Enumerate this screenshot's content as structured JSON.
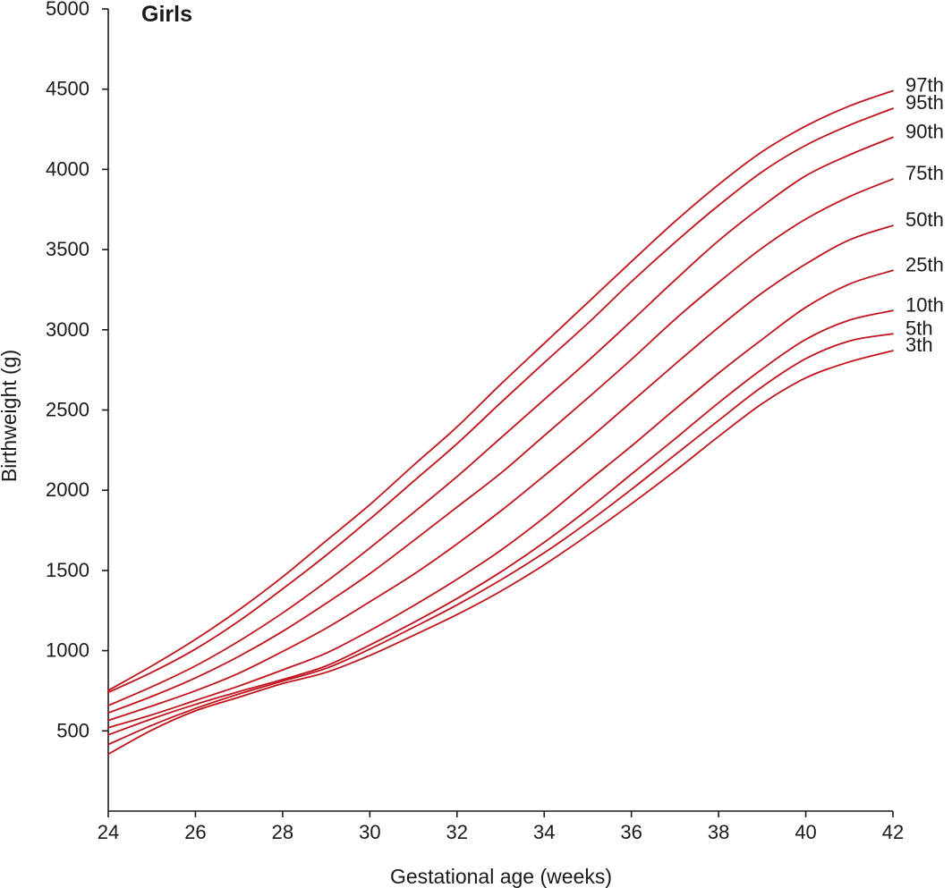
{
  "chart_data": {
    "type": "line",
    "title": "Girls",
    "xlabel": "Gestational age (weeks)",
    "ylabel": "Birthweight (g)",
    "xlim": [
      24,
      42
    ],
    "ylim": [
      0,
      5000
    ],
    "xticks": [
      24,
      26,
      28,
      30,
      32,
      34,
      36,
      38,
      40,
      42
    ],
    "yticks": [
      500,
      1000,
      1500,
      2000,
      2500,
      3000,
      3500,
      4000,
      4500,
      5000
    ],
    "grid": false,
    "line_color": "#c0141c",
    "x": [
      24,
      25,
      26,
      27,
      28,
      29,
      30,
      31,
      32,
      33,
      34,
      35,
      36,
      37,
      38,
      39,
      40,
      41,
      42
    ],
    "series": [
      {
        "name": "97th",
        "values": [
          752,
          905,
          1070,
          1255,
          1460,
          1685,
          1910,
          2155,
          2395,
          2660,
          2915,
          3170,
          3425,
          3675,
          3905,
          4110,
          4270,
          4395,
          4490
        ]
      },
      {
        "name": "95th",
        "values": [
          740,
          865,
          1010,
          1185,
          1385,
          1595,
          1820,
          2055,
          2290,
          2545,
          2795,
          3040,
          3300,
          3545,
          3775,
          3985,
          4150,
          4275,
          4380
        ]
      },
      {
        "name": "90th",
        "values": [
          658,
          775,
          905,
          1060,
          1235,
          1430,
          1640,
          1860,
          2085,
          2325,
          2565,
          2805,
          3055,
          3310,
          3555,
          3770,
          3960,
          4090,
          4200
        ]
      },
      {
        "name": "75th",
        "values": [
          612,
          715,
          830,
          965,
          1120,
          1295,
          1480,
          1685,
          1895,
          2105,
          2340,
          2575,
          2815,
          3065,
          3295,
          3510,
          3690,
          3830,
          3940
        ]
      },
      {
        "name": "50th",
        "values": [
          565,
          655,
          750,
          860,
          995,
          1140,
          1305,
          1475,
          1665,
          1870,
          2090,
          2315,
          2550,
          2785,
          3015,
          3230,
          3410,
          3560,
          3650
        ]
      },
      {
        "name": "25th",
        "values": [
          520,
          600,
          690,
          780,
          880,
          985,
          1125,
          1280,
          1445,
          1625,
          1830,
          2055,
          2275,
          2505,
          2730,
          2940,
          3140,
          3285,
          3370
        ]
      },
      {
        "name": "10th",
        "values": [
          475,
          575,
          665,
          745,
          820,
          905,
          1035,
          1175,
          1325,
          1490,
          1675,
          1880,
          2100,
          2320,
          2545,
          2755,
          2940,
          3060,
          3120
        ]
      },
      {
        "name": "5th",
        "values": [
          415,
          535,
          640,
          730,
          810,
          890,
          1010,
          1145,
          1285,
          1440,
          1610,
          1800,
          2005,
          2220,
          2435,
          2645,
          2820,
          2930,
          2975
        ]
      },
      {
        "name": "3th",
        "values": [
          355,
          505,
          625,
          710,
          795,
          865,
          970,
          1095,
          1225,
          1370,
          1535,
          1720,
          1915,
          2120,
          2335,
          2540,
          2700,
          2800,
          2870
        ]
      }
    ]
  }
}
